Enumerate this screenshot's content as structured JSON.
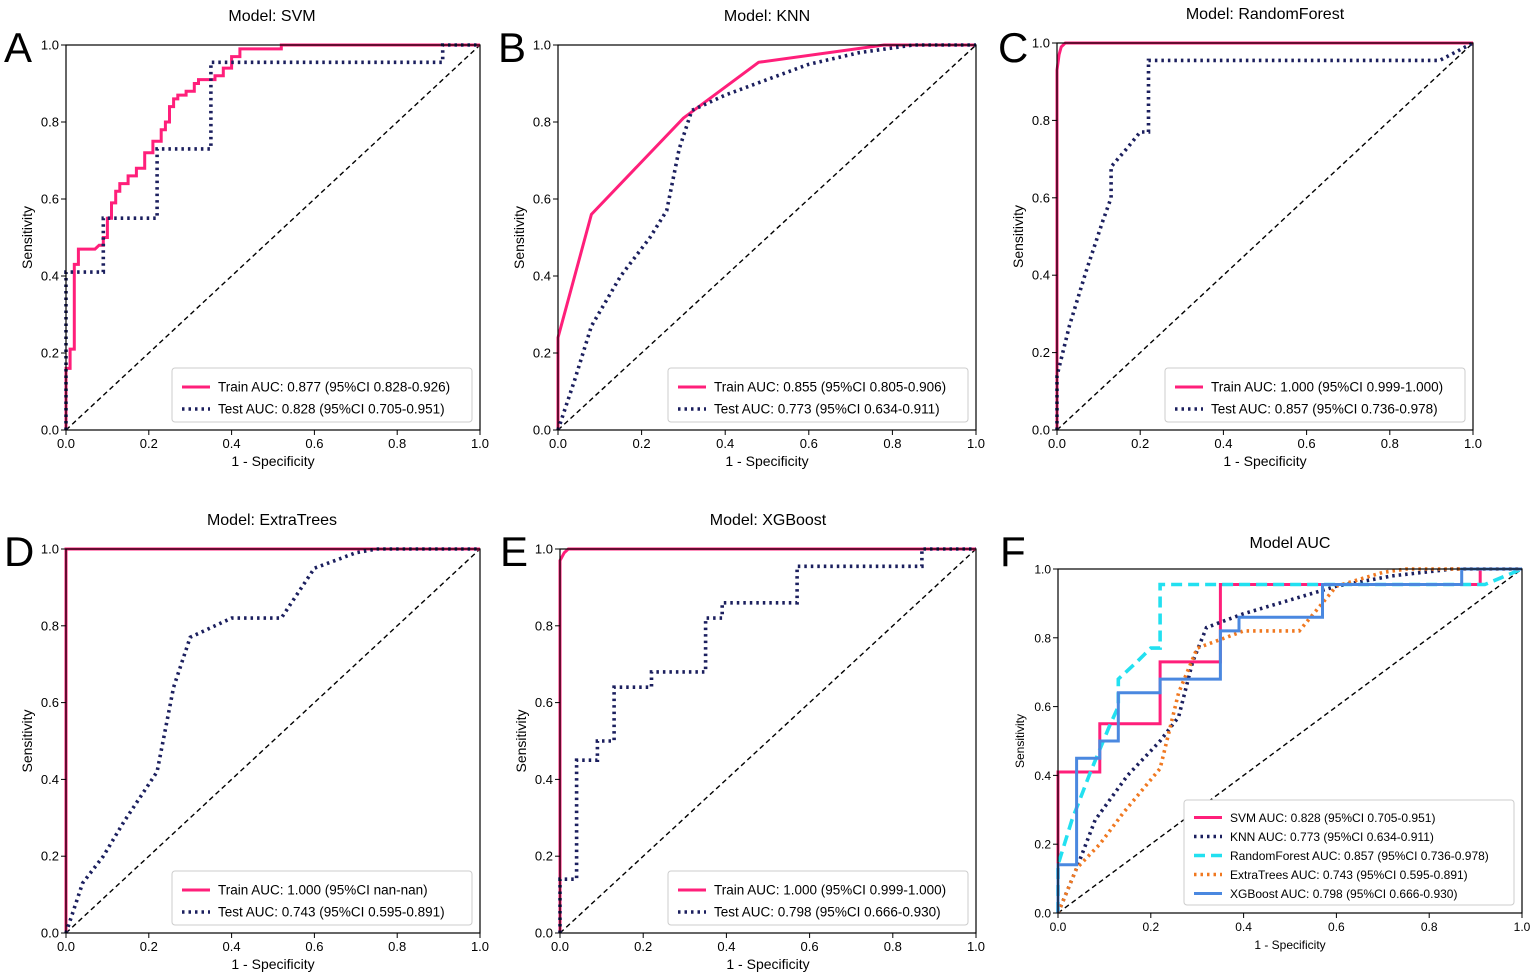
{
  "figure": {
    "panels": [
      "A",
      "B",
      "C",
      "D",
      "E",
      "F"
    ]
  },
  "chart_data": [
    {
      "type": "line",
      "panel": "A",
      "title": "Model: SVM",
      "xlabel": "1 - Specificity",
      "ylabel": "Sensitivity",
      "xlim": [
        0,
        1
      ],
      "ylim": [
        0,
        1
      ],
      "xticks": [
        "0.0",
        "0.2",
        "0.4",
        "0.6",
        "0.8",
        "1.0"
      ],
      "yticks": [
        "0.0",
        "0.2",
        "0.4",
        "0.6",
        "0.8",
        "1.0"
      ],
      "legend_position": "lower-right",
      "diagonal": true,
      "series": [
        {
          "name": "Train AUC: 0.877 (95%CI 0.828-0.926)",
          "color": "#ff1f7a",
          "style": "solid",
          "x": [
            0,
            0,
            0.01,
            0.01,
            0.02,
            0.02,
            0.03,
            0.03,
            0.07,
            0.08,
            0.09,
            0.09,
            0.1,
            0.1,
            0.11,
            0.11,
            0.12,
            0.12,
            0.13,
            0.13,
            0.15,
            0.15,
            0.17,
            0.17,
            0.19,
            0.19,
            0.21,
            0.21,
            0.23,
            0.23,
            0.24,
            0.24,
            0.25,
            0.25,
            0.26,
            0.26,
            0.27,
            0.27,
            0.29,
            0.29,
            0.31,
            0.31,
            0.32,
            0.32,
            0.36,
            0.36,
            0.38,
            0.38,
            0.4,
            0.4,
            0.42,
            0.42,
            0.52,
            0.52,
            1.0
          ],
          "y": [
            0,
            0.16,
            0.16,
            0.21,
            0.21,
            0.43,
            0.43,
            0.47,
            0.47,
            0.48,
            0.48,
            0.5,
            0.5,
            0.55,
            0.55,
            0.59,
            0.59,
            0.62,
            0.62,
            0.64,
            0.64,
            0.66,
            0.66,
            0.68,
            0.68,
            0.72,
            0.72,
            0.75,
            0.75,
            0.78,
            0.78,
            0.8,
            0.8,
            0.84,
            0.84,
            0.86,
            0.86,
            0.87,
            0.87,
            0.88,
            0.88,
            0.9,
            0.9,
            0.91,
            0.91,
            0.92,
            0.92,
            0.94,
            0.94,
            0.97,
            0.97,
            0.99,
            0.99,
            1.0,
            1.0
          ]
        },
        {
          "name": "Test AUC: 0.828 (95%CI 0.705-0.951)",
          "color": "#1b1f5e",
          "style": "dotted",
          "x": [
            0,
            0,
            0.09,
            0.09,
            0.22,
            0.22,
            0.35,
            0.35,
            0.91,
            0.91,
            1.0
          ],
          "y": [
            0,
            0.41,
            0.41,
            0.55,
            0.55,
            0.73,
            0.73,
            0.955,
            0.955,
            1.0,
            1.0
          ]
        }
      ]
    },
    {
      "type": "line",
      "panel": "B",
      "title": "Model: KNN",
      "xlabel": "1 - Specificity",
      "ylabel": "Sensitivity",
      "xlim": [
        0,
        1
      ],
      "ylim": [
        0,
        1
      ],
      "xticks": [
        "0.0",
        "0.2",
        "0.4",
        "0.6",
        "0.8",
        "1.0"
      ],
      "yticks": [
        "0.0",
        "0.2",
        "0.4",
        "0.6",
        "0.8",
        "1.0"
      ],
      "legend_position": "lower-right",
      "diagonal": true,
      "series": [
        {
          "name": "Train AUC: 0.855 (95%CI 0.805-0.906)",
          "color": "#ff1f7a",
          "style": "solid",
          "x": [
            0,
            0,
            0.08,
            0.3,
            0.48,
            0.78,
            1.0
          ],
          "y": [
            0,
            0.24,
            0.56,
            0.81,
            0.955,
            1.0,
            1.0
          ]
        },
        {
          "name": "Test AUC: 0.773 (95%CI 0.634-0.911)",
          "color": "#1b1f5e",
          "style": "dotted",
          "x": [
            0,
            0.04,
            0.08,
            0.15,
            0.22,
            0.26,
            0.29,
            0.32,
            0.4,
            0.5,
            0.6,
            0.72,
            0.85,
            1.0
          ],
          "y": [
            0,
            0.13,
            0.27,
            0.4,
            0.5,
            0.57,
            0.73,
            0.83,
            0.87,
            0.91,
            0.95,
            0.98,
            1.0,
            1.0
          ]
        }
      ]
    },
    {
      "type": "line",
      "panel": "C",
      "title": "Model: RandomForest",
      "xlabel": "1 - Specificity",
      "ylabel": "Sensitivity",
      "xlim": [
        0,
        1
      ],
      "ylim": [
        0,
        1
      ],
      "xticks": [
        "0.0",
        "0.2",
        "0.4",
        "0.6",
        "0.8",
        "1.0"
      ],
      "yticks": [
        "0.0",
        "0.2",
        "0.4",
        "0.6",
        "0.8",
        "1.0"
      ],
      "legend_position": "lower-right",
      "diagonal": true,
      "series": [
        {
          "name": "Train AUC: 1.000 (95%CI 0.999-1.000)",
          "color": "#ff1f7a",
          "style": "solid",
          "x": [
            0,
            0,
            0.005,
            0.01,
            0.02,
            1.0
          ],
          "y": [
            0,
            0.93,
            0.97,
            0.99,
            1.0,
            1.0
          ]
        },
        {
          "name": "Test AUC: 0.857 (95%CI 0.736-0.978)",
          "color": "#1b1f5e",
          "style": "dotted",
          "x": [
            0,
            0,
            0.03,
            0.07,
            0.11,
            0.13,
            0.13,
            0.17,
            0.2,
            0.22,
            0.22,
            0.92,
            1.0
          ],
          "y": [
            0,
            0.14,
            0.27,
            0.41,
            0.54,
            0.6,
            0.68,
            0.73,
            0.77,
            0.77,
            0.955,
            0.955,
            1.0
          ]
        }
      ]
    },
    {
      "type": "line",
      "panel": "D",
      "title": "Model: ExtraTrees",
      "xlabel": "1 - Specificity",
      "ylabel": "Sensitivity",
      "xlim": [
        0,
        1
      ],
      "ylim": [
        0,
        1
      ],
      "xticks": [
        "0.0",
        "0.2",
        "0.4",
        "0.6",
        "0.8",
        "1.0"
      ],
      "yticks": [
        "0.0",
        "0.2",
        "0.4",
        "0.6",
        "0.8",
        "1.0"
      ],
      "legend_position": "lower-right",
      "diagonal": true,
      "series": [
        {
          "name": "Train AUC: 1.000 (95%CI nan-nan)",
          "color": "#ff1f7a",
          "style": "solid",
          "x": [
            0,
            0,
            1.0
          ],
          "y": [
            0,
            1.0,
            1.0
          ]
        },
        {
          "name": "Test AUC: 0.743 (95%CI 0.595-0.891)",
          "color": "#1b1f5e",
          "style": "dotted",
          "x": [
            0,
            0.04,
            0.09,
            0.14,
            0.22,
            0.26,
            0.3,
            0.4,
            0.52,
            0.6,
            0.7,
            0.75,
            1.0
          ],
          "y": [
            0,
            0.13,
            0.2,
            0.29,
            0.42,
            0.64,
            0.77,
            0.82,
            0.82,
            0.95,
            0.99,
            1.0,
            1.0
          ]
        }
      ]
    },
    {
      "type": "line",
      "panel": "E",
      "title": "Model: XGBoost",
      "xlabel": "1 - Specificity",
      "ylabel": "Sensitivity",
      "xlim": [
        0,
        1
      ],
      "ylim": [
        0,
        1
      ],
      "xticks": [
        "0.0",
        "0.2",
        "0.4",
        "0.6",
        "0.8",
        "1.0"
      ],
      "yticks": [
        "0.0",
        "0.2",
        "0.4",
        "0.6",
        "0.8",
        "1.0"
      ],
      "legend_position": "lower-right",
      "diagonal": true,
      "series": [
        {
          "name": "Train AUC: 1.000 (95%CI 0.999-1.000)",
          "color": "#ff1f7a",
          "style": "solid",
          "x": [
            0,
            0,
            0.005,
            0.01,
            0.02,
            1.0
          ],
          "y": [
            0,
            0.97,
            0.98,
            0.99,
            1.0,
            1.0
          ]
        },
        {
          "name": "Test AUC: 0.798 (95%CI 0.666-0.930)",
          "color": "#1b1f5e",
          "style": "dotted",
          "x": [
            0,
            0,
            0.04,
            0.04,
            0.09,
            0.09,
            0.13,
            0.13,
            0.22,
            0.22,
            0.35,
            0.35,
            0.39,
            0.39,
            0.57,
            0.57,
            0.87,
            0.87,
            1.0
          ],
          "y": [
            0,
            0.14,
            0.14,
            0.45,
            0.45,
            0.5,
            0.5,
            0.64,
            0.64,
            0.68,
            0.68,
            0.82,
            0.82,
            0.86,
            0.86,
            0.955,
            0.955,
            1.0,
            1.0
          ]
        }
      ]
    },
    {
      "type": "line",
      "panel": "F",
      "title": "Model AUC",
      "xlabel": "1 - Specificity",
      "ylabel": "Sensitivity",
      "xlim": [
        0,
        1
      ],
      "ylim": [
        0,
        1
      ],
      "xticks": [
        "0.0",
        "0.2",
        "0.4",
        "0.6",
        "0.8",
        "1.0"
      ],
      "yticks": [
        "0.0",
        "0.2",
        "0.4",
        "0.6",
        "0.8",
        "1.0"
      ],
      "legend_position": "lower-right",
      "diagonal": true,
      "series": [
        {
          "name": "SVM AUC: 0.828 (95%CI 0.705-0.951)",
          "color": "#ff1f7a",
          "style": "solid",
          "x": [
            0,
            0,
            0.09,
            0.09,
            0.22,
            0.22,
            0.35,
            0.35,
            0.91,
            0.91,
            1.0
          ],
          "y": [
            0,
            0.41,
            0.41,
            0.55,
            0.55,
            0.73,
            0.73,
            0.955,
            0.955,
            1.0,
            1.0
          ]
        },
        {
          "name": "KNN AUC: 0.773 (95%CI 0.634-0.911)",
          "color": "#1b1f5e",
          "style": "dotted",
          "x": [
            0,
            0.04,
            0.08,
            0.15,
            0.22,
            0.26,
            0.29,
            0.32,
            0.4,
            0.5,
            0.6,
            0.72,
            0.85,
            1.0
          ],
          "y": [
            0,
            0.13,
            0.27,
            0.4,
            0.5,
            0.57,
            0.73,
            0.83,
            0.87,
            0.91,
            0.95,
            0.98,
            1.0,
            1.0
          ]
        },
        {
          "name": "RandomForest AUC: 0.857 (95%CI 0.736-0.978)",
          "color": "#22e0f0",
          "style": "dashed",
          "x": [
            0,
            0,
            0.03,
            0.07,
            0.11,
            0.13,
            0.13,
            0.17,
            0.2,
            0.22,
            0.22,
            0.92,
            1.0
          ],
          "y": [
            0,
            0.14,
            0.27,
            0.41,
            0.54,
            0.6,
            0.68,
            0.73,
            0.77,
            0.77,
            0.955,
            0.955,
            1.0
          ]
        },
        {
          "name": "ExtraTrees AUC: 0.743 (95%CI 0.595-0.891)",
          "color": "#f07820",
          "style": "dotted",
          "x": [
            0,
            0.04,
            0.09,
            0.14,
            0.22,
            0.26,
            0.3,
            0.4,
            0.52,
            0.6,
            0.7,
            0.75,
            1.0
          ],
          "y": [
            0,
            0.13,
            0.2,
            0.29,
            0.42,
            0.64,
            0.77,
            0.82,
            0.82,
            0.95,
            0.99,
            1.0,
            1.0
          ]
        },
        {
          "name": "XGBoost AUC: 0.798 (95%CI 0.666-0.930)",
          "color": "#4a88e0",
          "style": "solid",
          "x": [
            0,
            0,
            0.04,
            0.04,
            0.09,
            0.09,
            0.13,
            0.13,
            0.22,
            0.22,
            0.35,
            0.35,
            0.39,
            0.39,
            0.57,
            0.57,
            0.87,
            0.87,
            1.0
          ],
          "y": [
            0,
            0.14,
            0.14,
            0.45,
            0.45,
            0.5,
            0.5,
            0.64,
            0.64,
            0.68,
            0.68,
            0.82,
            0.82,
            0.86,
            0.86,
            0.955,
            0.955,
            1.0,
            1.0
          ]
        }
      ]
    }
  ]
}
